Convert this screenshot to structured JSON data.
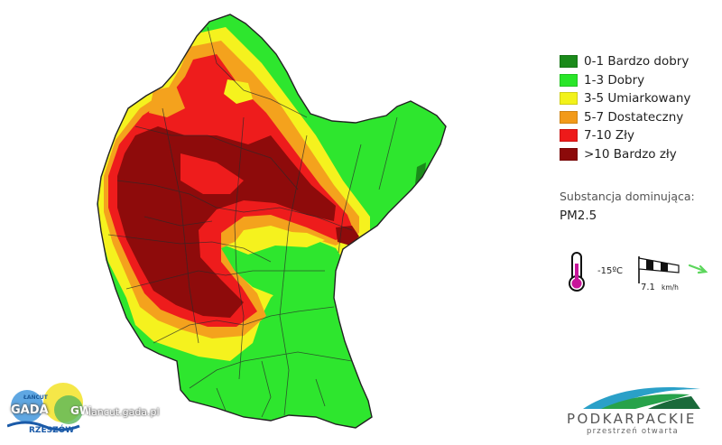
{
  "legend": {
    "items": [
      {
        "label": "0-1 Bardzo dobry",
        "color": "#1a8a1a"
      },
      {
        "label": "1-3 Dobry",
        "color": "#29e629"
      },
      {
        "label": "3-5 Umiarkowany",
        "color": "#f2f21a"
      },
      {
        "label": "5-7 Dostateczny",
        "color": "#f29a1a"
      },
      {
        "label": "7-10 Zły",
        "color": "#ee1a1a"
      },
      {
        "label": ">10 Bardzo zły",
        "color": "#8c0a0a"
      }
    ]
  },
  "substance": {
    "title": "Substancja dominująca:",
    "value": "PM2.5"
  },
  "weather": {
    "temperature": "-15ºC",
    "wind_speed": "7.1",
    "wind_unit": "km/h",
    "thermometer_icon": "thermometer-icon",
    "windsock_icon": "windsock-icon",
    "wind_direction_icon": "wind-direction-arrow-icon"
  },
  "branding": {
    "name": "PODKARPACKIE",
    "tagline": "przestrzeń otwarta"
  },
  "watermark": {
    "main": "GADA",
    "tail": "GW",
    "url": "lancut.gada.pl",
    "small": "ŁAŃCUT",
    "city": "RZESZÓW"
  }
}
